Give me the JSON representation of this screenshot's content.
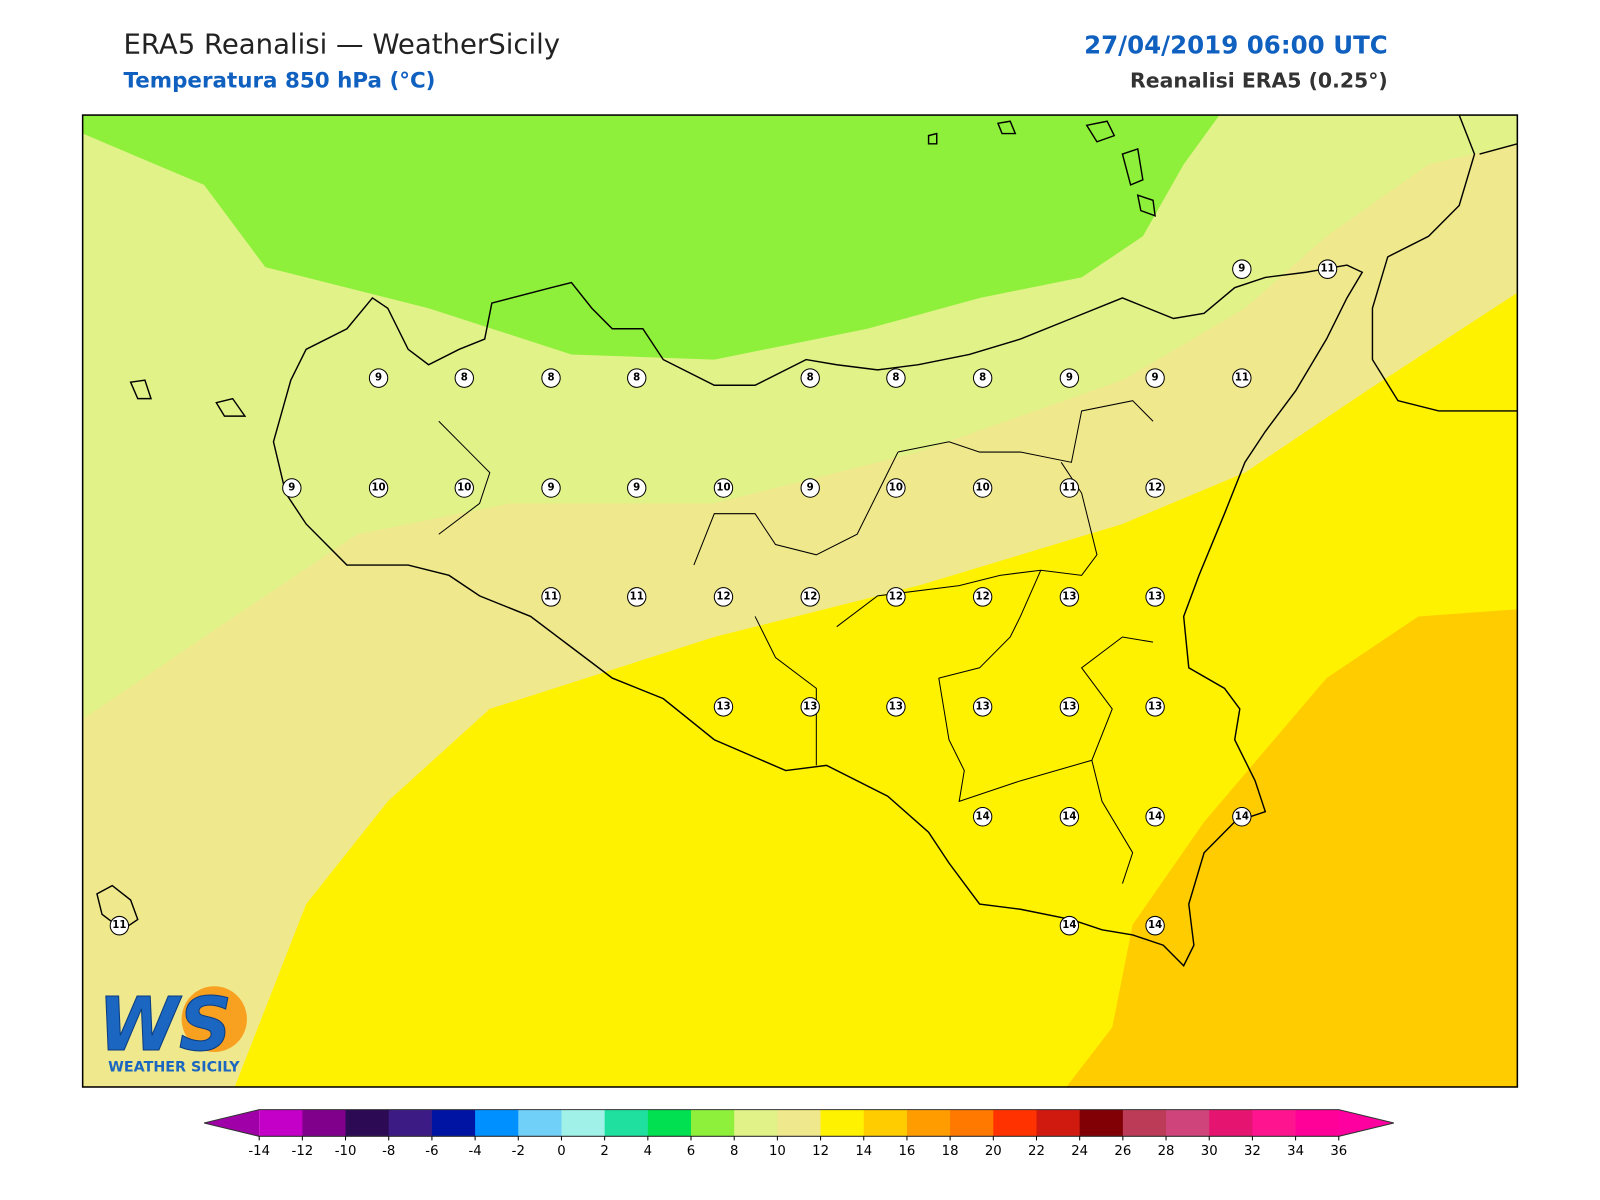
{
  "header": {
    "title": "ERA5 Reanalisi — WeatherSicily",
    "subtitle": "Temperatura 850 hPa (°C)",
    "date": "27/04/2019 06:00 UTC",
    "source": "Reanalisi ERA5 (0.25°)"
  },
  "stations": [
    9,
    11,
    9,
    8,
    8,
    8,
    8,
    8,
    8,
    9,
    9,
    11,
    9,
    10,
    10,
    9,
    9,
    10,
    9,
    10,
    10,
    11,
    12,
    11,
    11,
    12,
    12,
    12,
    12,
    13,
    13,
    13,
    13,
    13,
    13,
    13,
    13,
    14,
    14,
    14,
    14,
    11,
    14,
    14
  ],
  "colorbar": {
    "ticks": [
      -14,
      -12,
      -10,
      -8,
      -6,
      -4,
      -2,
      0,
      2,
      4,
      6,
      8,
      10,
      12,
      14,
      16,
      18,
      20,
      22,
      24,
      26,
      28,
      30,
      32,
      34,
      36
    ],
    "colors": [
      "#a000a8",
      "#c400c8",
      "#80008c",
      "#2c0a54",
      "#3c1c84",
      "#0014a4",
      "#0090ff",
      "#70d0f8",
      "#a0f2e8",
      "#20e0a0",
      "#00e050",
      "#8ef03a",
      "#e0f288",
      "#f0e88c",
      "#fff200",
      "#ffcc00",
      "#ff9c00",
      "#ff7800",
      "#ff3200",
      "#d01a10",
      "#800006",
      "#bc3c58",
      "#d0447c",
      "#e41470",
      "#ff1490",
      "#ff0098",
      "#ff00a0"
    ]
  },
  "logo": {
    "initials": "WS",
    "name": "WEATHER SICILY"
  }
}
